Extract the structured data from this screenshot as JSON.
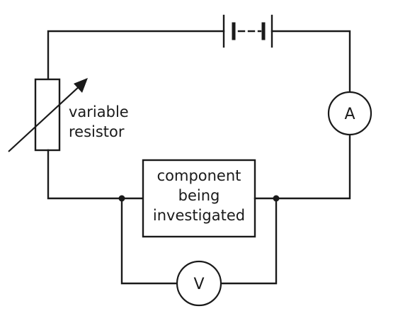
{
  "diagram": {
    "labels": {
      "variable_resistor_line1": "variable",
      "variable_resistor_line2": "resistor",
      "component_line1": "component",
      "component_line2": "being",
      "component_line3": "investigated",
      "ammeter": "A",
      "voltmeter": "V"
    },
    "colors": {
      "wire": "#1a1a1a",
      "background": "#ffffff"
    }
  }
}
